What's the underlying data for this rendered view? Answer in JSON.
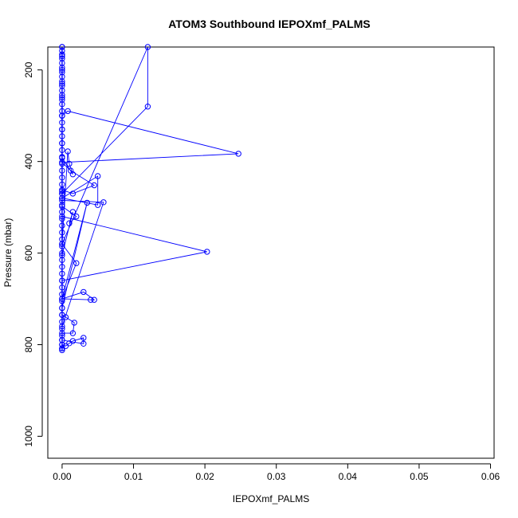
{
  "chart_data": {
    "type": "line",
    "title": "ATOM3 Southbound IEPOXmf_PALMS",
    "xlabel": "IEPOXmf_PALMS",
    "ylabel": "Pressure (mbar)",
    "xlim": [
      -0.002,
      0.0605
    ],
    "ylim": [
      1048,
      150
    ],
    "y_reversed": true,
    "x_ticks": [
      0.0,
      0.01,
      0.02,
      0.03,
      0.04,
      0.05,
      0.06
    ],
    "x_tick_labels": [
      "0.00",
      "0.01",
      "0.02",
      "0.03",
      "0.04",
      "0.05",
      "0.06"
    ],
    "y_ticks": [
      200,
      400,
      600,
      800,
      1000
    ],
    "y_tick_labels": [
      "200",
      "400",
      "600",
      "800",
      "1000"
    ],
    "grid": false,
    "series": [
      {
        "color": "#0000ff",
        "marker": "open-circle",
        "line": true,
        "points": [
          [
            0.0,
            808
          ],
          [
            0.0,
            800
          ],
          [
            0.0005,
            803
          ],
          [
            0.001,
            797
          ],
          [
            0.0015,
            792
          ],
          [
            0.003,
            785
          ],
          [
            0.003,
            798
          ],
          [
            0.0,
            790
          ],
          [
            0.0,
            775
          ],
          [
            0.0015,
            775
          ],
          [
            0.0017,
            752
          ],
          [
            0.0005,
            740
          ],
          [
            0.0,
            735
          ],
          [
            0.0,
            760
          ],
          [
            0.0058,
            489
          ],
          [
            0.0,
            485
          ],
          [
            0.0,
            470
          ],
          [
            0.0,
            462
          ],
          [
            0.0015,
            470
          ],
          [
            0.0045,
            452
          ],
          [
            0.0012,
            420
          ],
          [
            0.0,
            402
          ],
          [
            0.0247,
            383
          ],
          [
            0.0008,
            290
          ],
          [
            0.0,
            300
          ],
          [
            0.0,
            660
          ],
          [
            0.0203,
            597
          ],
          [
            0.0,
            520
          ],
          [
            0.0,
            498
          ],
          [
            0.002,
            520
          ],
          [
            0.001,
            535
          ],
          [
            0.0015,
            510
          ],
          [
            0.0,
            605
          ],
          [
            0.0,
            720
          ],
          [
            0.0035,
            490
          ],
          [
            0.0,
            700
          ],
          [
            0.004,
            702
          ],
          [
            0.0045,
            702
          ],
          [
            0.003,
            685
          ],
          [
            0.0,
            700
          ],
          [
            0.002,
            622
          ],
          [
            0.0,
            580
          ],
          [
            0.0,
            480
          ],
          [
            0.005,
            432
          ],
          [
            0.005,
            495
          ],
          [
            0.0,
            480
          ],
          [
            0.0,
            470
          ],
          [
            0.012,
            280
          ],
          [
            0.012,
            150
          ],
          [
            0.0,
            580
          ],
          [
            0.0008,
            378
          ],
          [
            0.001,
            405
          ],
          [
            0.0015,
            428
          ],
          [
            0.0,
            392
          ],
          [
            0.0,
            360
          ],
          [
            0.0,
            330
          ],
          [
            0.0,
            300
          ],
          [
            0.0,
            260
          ],
          [
            0.0,
            230
          ],
          [
            0.0,
            200
          ],
          [
            0.0,
            170
          ],
          [
            0.0,
            150
          ]
        ]
      }
    ],
    "baseline_points": [
      150,
      158,
      166,
      175,
      185,
      195,
      205,
      215,
      225,
      235,
      245,
      255,
      265,
      275,
      290,
      300,
      315,
      330,
      345,
      360,
      375,
      390,
      405,
      420,
      435,
      450,
      465,
      480,
      495,
      510,
      525,
      540,
      555,
      570,
      585,
      600,
      615,
      630,
      645,
      660,
      675,
      690,
      705,
      720,
      735,
      750,
      765,
      780,
      790,
      800,
      808,
      812
    ]
  },
  "colors": {
    "series": "#0000ff",
    "axis": "#000000",
    "background": "#ffffff"
  }
}
